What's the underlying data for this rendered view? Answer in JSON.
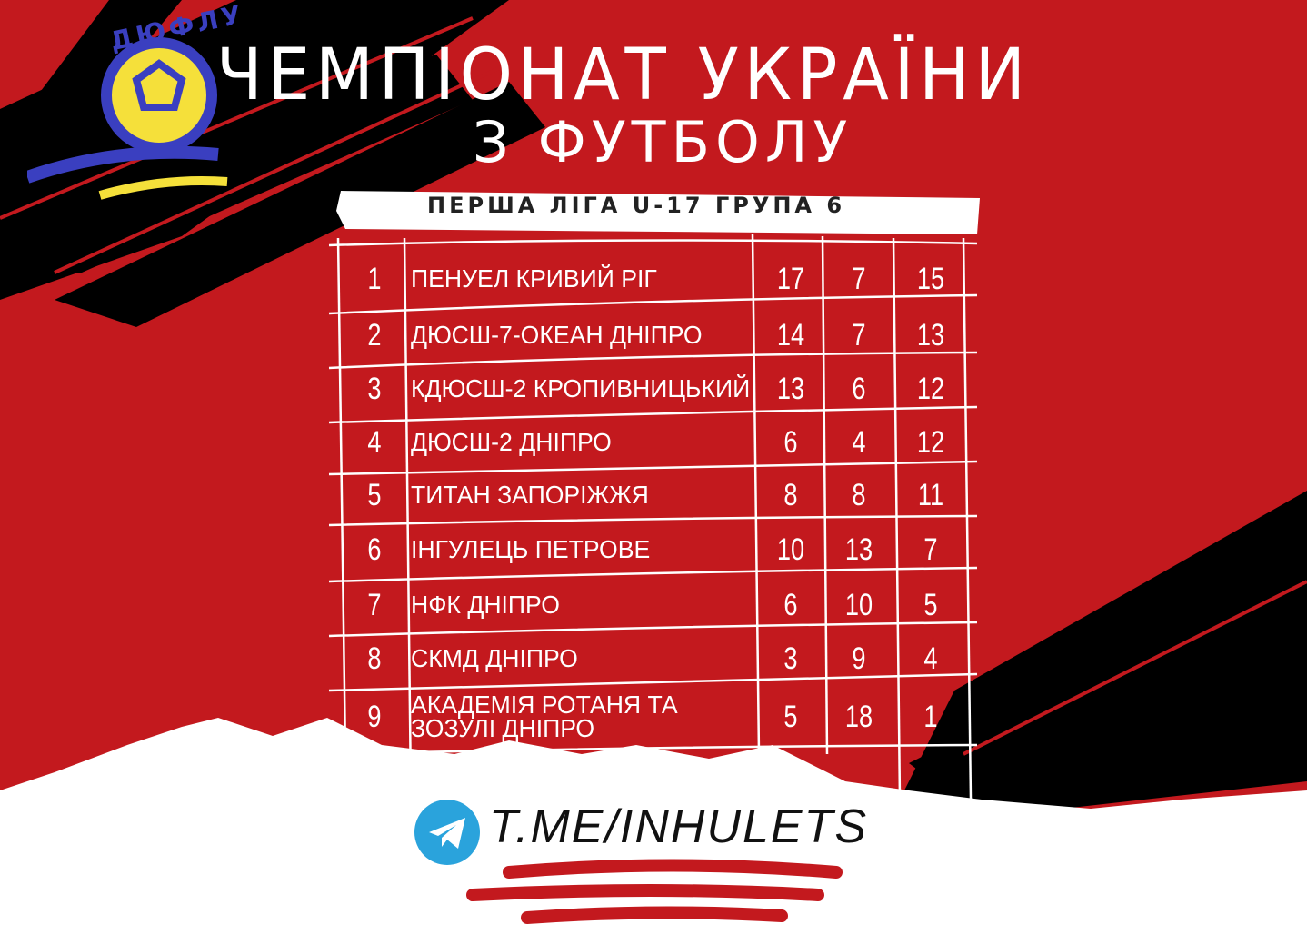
{
  "logo": {
    "text": "ДЮФЛУ",
    "colors": {
      "blue": "#3a3fc0",
      "yellow": "#f5e03a"
    }
  },
  "header": {
    "title_line1": "ЧЕМПІОНАТ УКРАЇНИ",
    "title_line2": "З ФУТБОЛУ",
    "subtitle": "ПЕРША ЛІГА  U-17  ГРУПА 6"
  },
  "standings": {
    "rows": [
      {
        "rank": "1",
        "team": "ПЕНУЕЛ КРИВИЙ РІГ",
        "v1": "17",
        "v2": "7",
        "v3": "15"
      },
      {
        "rank": "2",
        "team": "ДЮСШ-7-ОКЕАН ДНІПРО",
        "v1": "14",
        "v2": "7",
        "v3": "13"
      },
      {
        "rank": "3",
        "team": "КДЮСШ-2 КРОПИВНИЦЬКИЙ",
        "v1": "13",
        "v2": "6",
        "v3": "12"
      },
      {
        "rank": "4",
        "team": "ДЮСШ-2 ДНІПРО",
        "v1": "6",
        "v2": "4",
        "v3": "12"
      },
      {
        "rank": "5",
        "team": "ТИТАН ЗАПОРІЖЖЯ",
        "v1": "8",
        "v2": "8",
        "v3": "11"
      },
      {
        "rank": "6",
        "team": "ІНГУЛЕЦЬ ПЕТРОВЕ",
        "v1": "10",
        "v2": "13",
        "v3": "7"
      },
      {
        "rank": "7",
        "team": "НФК ДНІПРО",
        "v1": "6",
        "v2": "10",
        "v3": "5"
      },
      {
        "rank": "8",
        "team": "СКМД ДНІПРО",
        "v1": "3",
        "v2": "9",
        "v3": "4"
      },
      {
        "rank": "9",
        "team": "АКАДЕМІЯ РОТАНЯ ТА ЗОЗУЛІ ДНІПРО",
        "v1": "5",
        "v2": "18",
        "v3": "1"
      }
    ]
  },
  "footer": {
    "link": "T.ME/INHULETS",
    "icon": "telegram-icon"
  },
  "colors": {
    "background": "#c3191e",
    "strokes": "#000000",
    "paper": "#ffffff"
  }
}
